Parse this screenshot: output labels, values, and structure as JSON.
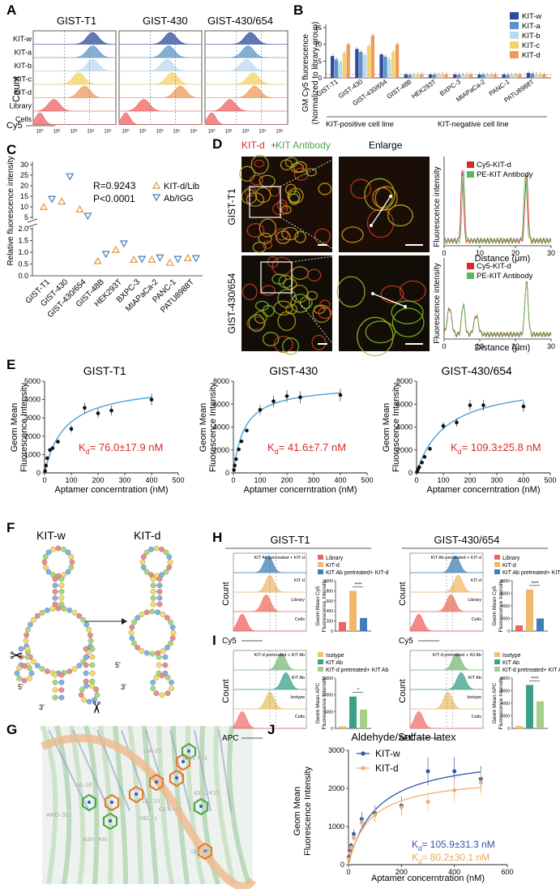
{
  "colors": {
    "w": "#2e4a9c",
    "a": "#5b93c7",
    "b": "#bcd8ee",
    "c": "#f4d264",
    "d": "#ef9a5a",
    "lib": "#ef6262",
    "kitd_tri": "#e8913b",
    "ab_tri": "#3f7fb9",
    "red": "#d62a2a",
    "green": "#5cb85c",
    "fit": "#4aa3d8",
    "teal": "#3aa08a"
  },
  "panelA": {
    "letter": "A",
    "ylabel": "Count",
    "xlabel": "Cy5",
    "columns": [
      "GIST-T1",
      "GIST-430",
      "GIST-430/654"
    ],
    "rows": [
      "KIT-w",
      "KIT-a",
      "KIT-b",
      "KIT-c",
      "KIT-d",
      "Library",
      "Cells"
    ],
    "ticks": [
      "10⁰",
      "10²",
      "10³",
      "10⁴",
      "10⁵"
    ]
  },
  "panelB": {
    "letter": "B",
    "ylabel1": "GM Cy5 fluorescence",
    "ylabel2": "(Normalized to library group)",
    "legend": [
      "KIT-w",
      "KIT-a",
      "KIT-b",
      "KIT-c",
      "KIT-d"
    ],
    "group1": "KIT-positive cell line",
    "group2": "KIT-negative cell line",
    "chart_data": {
      "type": "bar",
      "categories": [
        "GIST-T1",
        "GIST-430",
        "GIST-430/654",
        "GIST-48B",
        "HEK293T",
        "BXPC-3",
        "MIAPaCa-2",
        "PANC-1",
        "PATU8988T"
      ],
      "series": [
        {
          "name": "KIT-w",
          "values": [
            6.5,
            8.6,
            7.0,
            1.0,
            1.0,
            1.0,
            1.0,
            1.0,
            1.5
          ]
        },
        {
          "name": "KIT-a",
          "values": [
            5.5,
            7.7,
            6.3,
            0.9,
            1.0,
            0.9,
            1.0,
            0.9,
            1.3
          ]
        },
        {
          "name": "KIT-b",
          "values": [
            4.6,
            6.7,
            5.5,
            0.9,
            0.9,
            0.9,
            0.9,
            0.9,
            1.1
          ]
        },
        {
          "name": "KIT-c",
          "values": [
            7.4,
            9.4,
            7.6,
            1.0,
            1.0,
            1.0,
            1.0,
            0.9,
            1.0
          ]
        },
        {
          "name": "KIT-d",
          "values": [
            10.0,
            12.6,
            10.0,
            1.0,
            1.0,
            1.0,
            1.0,
            0.9,
            1.0
          ]
        }
      ],
      "yticks": [
        "0",
        "5",
        "10",
        "15"
      ],
      "ylim": [
        0,
        15
      ]
    }
  },
  "panelC": {
    "letter": "C",
    "ylabel": "Relative fluorescence intensity",
    "stats1": "R=0.9243",
    "stats2": "P<0.0001",
    "legend": [
      "KIT-d/Lib",
      "Ab/IGG"
    ],
    "chart_data": {
      "type": "scatter",
      "categories": [
        "GIST-T1",
        "GIST-430",
        "GIST-430/654",
        "GIST-48B",
        "HEK293T",
        "BXPC-3",
        "MIAPaCa-2",
        "PANC-1",
        "PATU8988T"
      ],
      "series": [
        {
          "name": "KIT-d/Lib",
          "values": [
            9.9,
            12.5,
            8.8,
            0.62,
            1.1,
            0.68,
            0.68,
            0.55,
            0.75
          ]
        },
        {
          "name": "Ab/IGG",
          "values": [
            13.8,
            24.5,
            5.8,
            0.93,
            1.38,
            0.72,
            0.78,
            0.72,
            0.75
          ]
        }
      ],
      "yticks_top": [
        "5",
        "10",
        "15",
        "20",
        "25",
        "30"
      ],
      "yticks_bottom": [
        "0.0",
        "0.5",
        "1.0",
        "1.5",
        "2.0"
      ]
    }
  },
  "panelD": {
    "letter": "D",
    "title_red": "KIT-d",
    "title_plus": "+",
    "title_green": " KIT Antibody",
    "enlarge": "Enlarge",
    "rows": [
      "GIST-T1",
      "GIST-430/654"
    ],
    "ylabel": "Fluorescence intensity",
    "xlabel": "Distance (μm)",
    "legend": [
      "Cy5-KIT-d",
      "PE-KIT Antibody"
    ],
    "xticks": [
      "0",
      "10",
      "20",
      "30"
    ]
  },
  "panelE": {
    "letter": "E",
    "ylabel1": "Geom Mean",
    "ylabel2": "Fluorescence Intensity",
    "xlabel": "Aptamer concerntration (nM)",
    "xticks": [
      "0",
      "100",
      "200",
      "300",
      "400",
      "500"
    ],
    "charts": [
      {
        "title": "GIST-T1",
        "kd_pre": "K",
        "kd_sub": "d",
        "kd_post": "= 76.0±17.9 nM",
        "ymax": 5000,
        "yticks": [
          "0",
          "1000",
          "2000",
          "3000",
          "4000",
          "5000"
        ],
        "chart_data": {
          "type": "scatter",
          "x": [
            2,
            5,
            10,
            20,
            30,
            50,
            100,
            150,
            200,
            250,
            400
          ],
          "y": [
            100,
            400,
            800,
            1250,
            1350,
            1700,
            2400,
            3550,
            3250,
            3400,
            4000
          ],
          "bmax": 4900,
          "kd": 76.0
        }
      },
      {
        "title": "GIST-430",
        "kd_pre": "K",
        "kd_sub": "d",
        "kd_post": "= 41.6±7.7 nM",
        "ymax": 8000,
        "yticks": [
          "0",
          "2000",
          "4000",
          "6000",
          "8000"
        ],
        "chart_data": {
          "type": "scatter",
          "x": [
            2,
            5,
            10,
            20,
            30,
            50,
            100,
            150,
            200,
            250,
            400
          ],
          "y": [
            250,
            650,
            1200,
            2050,
            2750,
            3700,
            5500,
            6250,
            6700,
            6600,
            6800
          ],
          "bmax": 7700,
          "kd": 41.6
        }
      },
      {
        "title": "GIST-430/654",
        "kd_pre": "K",
        "kd_sub": "d",
        "kd_post": "= 109.3±25.8 nM",
        "ymax": 8000,
        "yticks": [
          "0",
          "2000",
          "4000",
          "6000",
          "8000"
        ],
        "chart_data": {
          "type": "scatter",
          "x": [
            2,
            5,
            10,
            20,
            30,
            50,
            100,
            150,
            200,
            250,
            400
          ],
          "y": [
            100,
            300,
            500,
            900,
            1400,
            2100,
            4100,
            4400,
            5900,
            5900,
            5800
          ],
          "bmax": 8100,
          "kd": 109.3
        }
      }
    ]
  },
  "panelF": {
    "letter": "F",
    "left_title": "KIT-w",
    "right_title": "KIT-d",
    "five": "5'",
    "three": "3'"
  },
  "panelG": {
    "letter": "G",
    "residues": [
      "ASN-463",
      "DA-29",
      "DA-18",
      "DG-20",
      "GLY-470",
      "DG-21",
      "GLU-435",
      "ARG-353",
      "ASN-406",
      "DG-24"
    ]
  },
  "panelH": {
    "letter": "H",
    "groups": [
      {
        "title": "GIST-T1",
        "hist_labels": [
          "KIT Ab pretreated + KIT-d",
          "KIT-d",
          "Library",
          "Cells"
        ],
        "legend": [
          "Library",
          "KIT-d",
          "KIT Ab pretreated+ KIT-d"
        ],
        "ylabel1": "Geom Mean Cy5",
        "ylabel2": "Fluorescence Intensity",
        "yticks": [
          "0",
          "200",
          "400",
          "600",
          "800",
          "1000"
        ],
        "sig": "****",
        "chart_data": {
          "type": "bar",
          "categories": [
            "Library",
            "KIT-d",
            "KIT Ab pretreated+ KIT-d"
          ],
          "values": [
            180,
            800,
            260
          ],
          "ylim": [
            0,
            1000
          ]
        }
      },
      {
        "title": "GIST-430/654",
        "hist_labels": [
          "KIT Ab pretreated + KIT-d",
          "KIT-d",
          "Library",
          "Cells"
        ],
        "legend": [
          "Library",
          "KIT-d",
          "KIT Ab pretreated+ KIT-d"
        ],
        "ylabel1": "Geom Mean Cy5",
        "ylabel2": "Fluorescence Intensity",
        "yticks": [
          "0",
          "2000",
          "4000",
          "6000",
          "8000"
        ],
        "sig": "****",
        "chart_data": {
          "type": "bar",
          "categories": [
            "Library",
            "KIT-d",
            "KIT Ab pretreated+ KIT-d"
          ],
          "values": [
            900,
            6600,
            2000
          ],
          "ylim": [
            0,
            8000
          ]
        }
      }
    ],
    "xlabel": "Cy5",
    "ylabel": "Count"
  },
  "panelI": {
    "letter": "I",
    "groups": [
      {
        "hist_labels": [
          "KIT-d pretreated + KIT Ab",
          "KIT Ab",
          "Isotype",
          "Cells"
        ],
        "legend": [
          "Isotype",
          "KIT Ab",
          "KIT-d pretreated+ KIT Ab"
        ],
        "ylabel1": "Geom Mean APC",
        "ylabel2": "Fluorescence Intensity",
        "yticks": [
          "0",
          "5000",
          "10000",
          "15000"
        ],
        "sig": "*",
        "chart_data": {
          "type": "bar",
          "categories": [
            "Isotype",
            "KIT Ab",
            "KIT-d pretreated+ KIT Ab"
          ],
          "values": [
            700,
            9500,
            5600
          ],
          "ylim": [
            0,
            15000
          ]
        }
      },
      {
        "hist_labels": [
          "KIT-d pretreated + Kit Ab",
          "KIT Ab",
          "Isotype",
          "Cells"
        ],
        "legend": [
          "Isotype",
          "KIT Ab",
          "KIT-d pretreated+ KIT Ab"
        ],
        "ylabel1": "Geom Mean APC",
        "ylabel2": "Fluorescence Intensity",
        "yticks": [
          "0",
          "2000",
          "4000",
          "6000",
          "8000"
        ],
        "sig": "****",
        "chart_data": {
          "type": "bar",
          "categories": [
            "Isotype",
            "KIT Ab",
            "KIT-d pretreated+ KIT Ab"
          ],
          "values": [
            400,
            6900,
            4300
          ],
          "ylim": [
            0,
            8000
          ]
        }
      }
    ],
    "xlabel": "APC",
    "ylabel": "Count"
  },
  "panelJ": {
    "letter": "J",
    "title": "Aldehyde/Sulfate latex",
    "ylabel1": "Geom Mean",
    "ylabel2": "Fluorescence Intensity",
    "xlabel": "Aptamer concerntration (nM)",
    "legend": [
      "KIT-w",
      "KIT-d"
    ],
    "kd1_pre": "K",
    "kd1_sub": "d",
    "kd1_post": "= 105.9±31.3 nM",
    "kd2_pre": "K",
    "kd2_sub": "d",
    "kd2_post": "= 80.2±30.1 nM",
    "xticks": [
      "0",
      "200",
      "400",
      "600"
    ],
    "yticks": [
      "0",
      "1000",
      "2000",
      "3000"
    ],
    "chart_data": {
      "type": "scatter",
      "series": [
        {
          "name": "KIT-w",
          "x": [
            2,
            5,
            10,
            20,
            50,
            100,
            200,
            300,
            400,
            500
          ],
          "y": [
            200,
            350,
            500,
            800,
            1200,
            1350,
            1550,
            2450,
            2450,
            2250
          ],
          "bmax": 2950,
          "kd": 105.9
        },
        {
          "name": "KIT-d",
          "x": [
            2,
            5,
            10,
            20,
            50,
            100,
            200,
            300,
            400,
            500
          ],
          "y": [
            150,
            300,
            450,
            700,
            1100,
            1300,
            1500,
            1650,
            1950,
            2150
          ],
          "bmax": 2350,
          "kd": 80.2
        }
      ],
      "xlim": [
        0,
        600
      ],
      "ylim": [
        0,
        3000
      ]
    }
  }
}
